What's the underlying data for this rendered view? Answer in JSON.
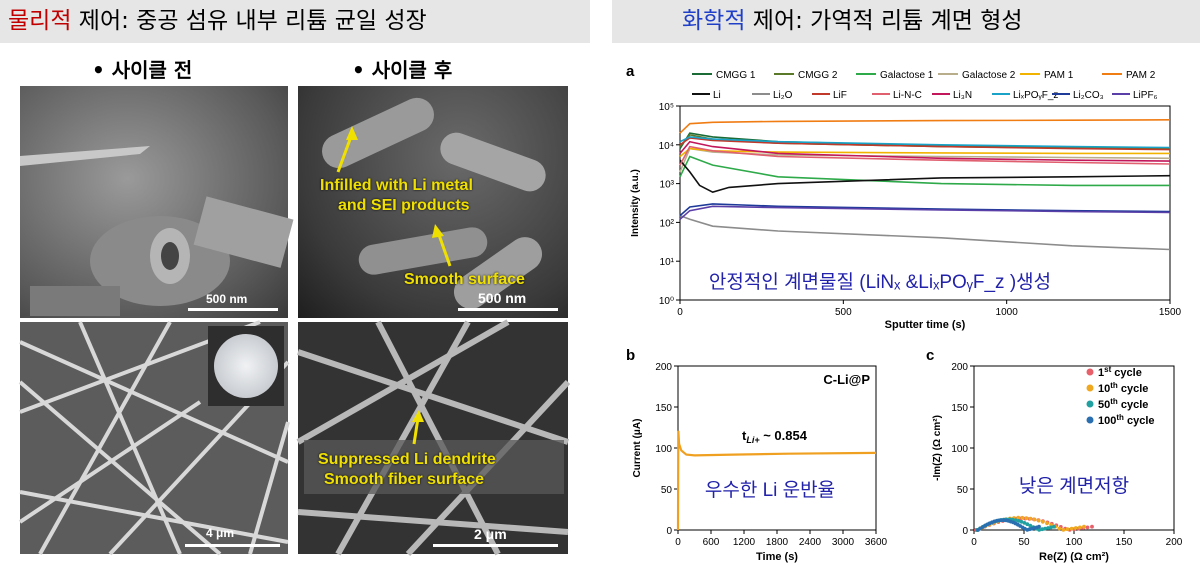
{
  "left": {
    "title_red": "물리적",
    "title_rest": " 제어: 중공 섬유 내부 리튬 균일 성장",
    "bullet_before": "•   사이클 전",
    "bullet_after": "•   사이클 후",
    "tl_scale": "500 nm",
    "tr_scale": "500 nm",
    "bl_scale": "4 μm",
    "br_scale": "2 μm",
    "annot_infilled_1": "Infilled with Li metal",
    "annot_infilled_2": "and SEI products",
    "annot_smooth": "Smooth surface",
    "annot_dendrite_1": "Suppressed Li dendrite",
    "annot_dendrite_2": "Smooth fiber surface"
  },
  "right": {
    "title_blue": "화학적",
    "title_rest": " 제어: 가역적 리튬 계면 형성"
  },
  "chart_data": [
    {
      "type": "line",
      "panel": "a",
      "xlabel": "Sputter time (s)",
      "ylabel": "Intensity (a.u.)",
      "xlim": [
        0,
        1500
      ],
      "ylim": [
        1,
        100000
      ],
      "yscale": "log",
      "xticks": [
        "0",
        "500",
        "1000",
        "1500"
      ],
      "yticks": [
        "10⁰",
        "10¹",
        "10²",
        "10³",
        "10⁴",
        "10⁵"
      ],
      "legend_row1": [
        "CMGG 1",
        "CMGG 2",
        "Galactose 1",
        "Galactose 2",
        "PAM 1",
        "PAM 2"
      ],
      "legend_row2": [
        "Li",
        "Li₂O",
        "LiF",
        "Li-N-C",
        "Li₃N",
        "LiₓPOᵧF_z",
        "Li₂CO₃",
        "LiPF₆"
      ],
      "annotation": "안정적인 계면물질 (LiNₓ &LiₓPOᵧF_z )생성",
      "series": [
        {
          "name": "CMGG 1",
          "color": "#1a6b35",
          "x": [
            0,
            30,
            100,
            300,
            800,
            1200,
            1500
          ],
          "y": [
            8000,
            20000,
            16000,
            12000,
            9500,
            8500,
            8000
          ]
        },
        {
          "name": "CMGG 2",
          "color": "#5a7a2a",
          "x": [
            0,
            30,
            100,
            300,
            800,
            1200,
            1500
          ],
          "y": [
            9000,
            18000,
            14000,
            11000,
            9000,
            8200,
            8000
          ]
        },
        {
          "name": "Galactose 1",
          "color": "#2faa4a",
          "x": [
            0,
            30,
            100,
            300,
            800,
            1200,
            1500
          ],
          "y": [
            1500,
            5000,
            3000,
            1500,
            1000,
            900,
            900
          ]
        },
        {
          "name": "Galactose 2",
          "color": "#b8ae8c",
          "x": [
            0,
            30,
            100,
            300,
            800,
            1200,
            1500
          ],
          "y": [
            2000,
            8000,
            6500,
            5500,
            5000,
            4700,
            4500
          ]
        },
        {
          "name": "PAM 1",
          "color": "#f2b200",
          "x": [
            0,
            30,
            100,
            300,
            800,
            1200,
            1500
          ],
          "y": [
            5000,
            8000,
            7000,
            6500,
            6200,
            6000,
            6000
          ]
        },
        {
          "name": "PAM 2",
          "color": "#f07c14",
          "x": [
            0,
            30,
            100,
            300,
            800,
            1200,
            1500
          ],
          "y": [
            20000,
            35000,
            38000,
            40000,
            42000,
            43000,
            44000
          ]
        },
        {
          "name": "Li",
          "color": "#111111",
          "x": [
            0,
            30,
            60,
            100,
            150,
            300,
            800,
            1200,
            1500
          ],
          "y": [
            4000,
            2000,
            900,
            600,
            800,
            1000,
            1400,
            1500,
            1600
          ]
        },
        {
          "name": "Li₂O",
          "color": "#8c8c8c",
          "x": [
            0,
            30,
            100,
            300,
            800,
            1200,
            1500
          ],
          "y": [
            150,
            120,
            80,
            60,
            40,
            25,
            20
          ]
        },
        {
          "name": "LiF",
          "color": "#c0392b",
          "x": [
            0,
            30,
            100,
            300,
            800,
            1200,
            1500
          ],
          "y": [
            10000,
            15000,
            13000,
            11000,
            9000,
            8000,
            7500
          ]
        },
        {
          "name": "Li-N-C",
          "color": "#e06070",
          "x": [
            0,
            30,
            100,
            300,
            800,
            1200,
            1500
          ],
          "y": [
            3000,
            9000,
            7000,
            5000,
            4000,
            3500,
            3200
          ]
        },
        {
          "name": "Li₃N",
          "color": "#c2185b",
          "x": [
            0,
            30,
            100,
            300,
            800,
            1200,
            1500
          ],
          "y": [
            6000,
            12000,
            9000,
            6000,
            4500,
            4000,
            3800
          ]
        },
        {
          "name": "LiₓPOᵧF_z",
          "color": "#1aa3c8",
          "x": [
            0,
            30,
            100,
            300,
            800,
            1200,
            1500
          ],
          "y": [
            12000,
            16000,
            14000,
            12000,
            10000,
            9000,
            8500
          ]
        },
        {
          "name": "Li₂CO₃",
          "color": "#1f3b9a",
          "x": [
            0,
            30,
            100,
            300,
            800,
            1200,
            1500
          ],
          "y": [
            150,
            250,
            300,
            260,
            220,
            200,
            190
          ]
        },
        {
          "name": "LiPF₆",
          "color": "#5b3fa8",
          "x": [
            0,
            30,
            100,
            300,
            800,
            1200,
            1500
          ],
          "y": [
            120,
            200,
            260,
            240,
            210,
            190,
            180
          ]
        }
      ]
    },
    {
      "type": "line",
      "panel": "b",
      "xlabel": "Time (s)",
      "ylabel": "Current (μA)",
      "xlim": [
        0,
        3600
      ],
      "ylim": [
        0,
        200
      ],
      "xticks": [
        "0",
        "600",
        "1200",
        "1800",
        "2400",
        "3000",
        "3600"
      ],
      "yticks": [
        "0",
        "50",
        "100",
        "150",
        "200"
      ],
      "label": "C-Li@P",
      "t_label": "t",
      "t_sub": "Li+",
      "t_value": " ~ 0.854",
      "annotation": "우수한 Li 운반율",
      "series": [
        {
          "color": "#f0a020",
          "x": [
            0,
            5,
            20,
            60,
            150,
            300,
            1000,
            2000,
            3600
          ],
          "y": [
            0,
            121,
            105,
            97,
            92,
            91,
            92,
            93,
            94
          ]
        }
      ]
    },
    {
      "type": "scatter",
      "panel": "c",
      "xlabel": "Re(Z) (Ω cm²)",
      "ylabel": "-Im(Z) (Ω cm²)",
      "xlim": [
        0,
        200
      ],
      "ylim": [
        0,
        200
      ],
      "xticks": [
        "0",
        "50",
        "100",
        "150",
        "200"
      ],
      "yticks": [
        "0",
        "50",
        "100",
        "150",
        "200"
      ],
      "annotation": "낮은 계면저항",
      "legend": [
        {
          "num": "1",
          "sup": "st",
          "rest": " cycle",
          "color": "#e8606a"
        },
        {
          "num": "10",
          "sup": "th",
          "rest": " cycle",
          "color": "#f0a820"
        },
        {
          "num": "50",
          "sup": "th",
          "rest": " cycle",
          "color": "#20a0a0"
        },
        {
          "num": "100",
          "sup": "th",
          "rest": " cycle",
          "color": "#2a6fb0"
        }
      ],
      "series": [
        {
          "name": "1st cycle",
          "color": "#e8606a",
          "x0": 2,
          "x1": 118,
          "peak": 14
        },
        {
          "name": "10th cycle",
          "color": "#f0a820",
          "x0": 3,
          "x1": 110,
          "peak": 15
        },
        {
          "name": "50th cycle",
          "color": "#20a0a0",
          "x0": 3,
          "x1": 80,
          "peak": 13
        },
        {
          "name": "100th cycle",
          "color": "#2a6fb0",
          "x0": 4,
          "x1": 65,
          "peak": 12
        }
      ]
    }
  ]
}
